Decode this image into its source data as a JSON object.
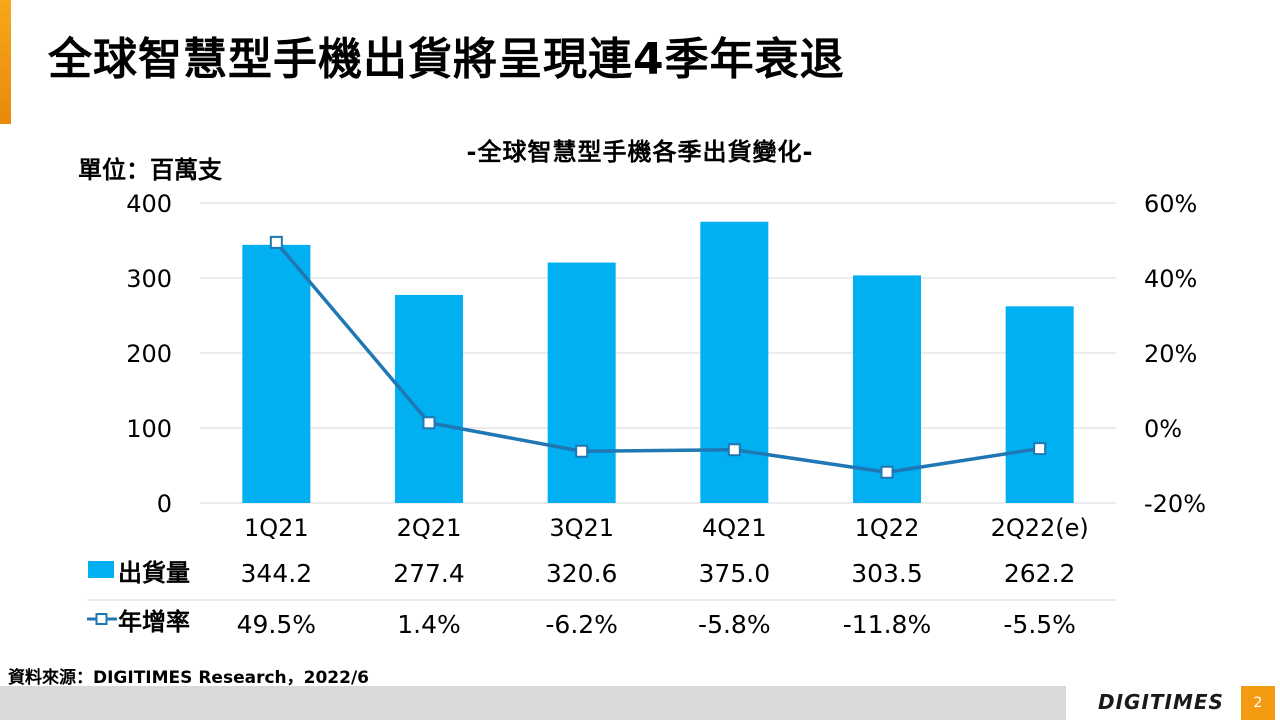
{
  "slide": {
    "title": "全球智慧型手機出貨將呈現連4季年衰退",
    "unit_label": "單位：百萬支",
    "source": "資料來源：DIGITIMES Research，2022/6",
    "logo": "DIGITIMES",
    "page_number": "2",
    "accent_color": "#f39c12"
  },
  "chart_data": {
    "type": "bar",
    "title": "-全球智慧型手機各季出貨變化-",
    "categories": [
      "1Q21",
      "2Q21",
      "3Q21",
      "4Q21",
      "1Q22",
      "2Q22(e)"
    ],
    "series": [
      {
        "name": "出貨量",
        "type": "bar",
        "axis": "left",
        "color": "#00b0f0",
        "values": [
          344.2,
          277.4,
          320.6,
          375.0,
          303.5,
          262.2
        ],
        "labels": [
          "344.2",
          "277.4",
          "320.6",
          "375.0",
          "303.5",
          "262.2"
        ]
      },
      {
        "name": "年增率",
        "type": "line",
        "axis": "right",
        "color": "#1f77b4",
        "values": [
          49.5,
          1.4,
          -6.2,
          -5.8,
          -11.8,
          -5.5
        ],
        "labels": [
          "49.5%",
          "1.4%",
          "-6.2%",
          "-5.8%",
          "-11.8%",
          "-5.5%"
        ]
      }
    ],
    "y_left": {
      "min": 0,
      "max": 400,
      "ticks": [
        "0",
        "100",
        "200",
        "300",
        "400"
      ]
    },
    "y_right": {
      "min": -20,
      "max": 60,
      "ticks": [
        "-20%",
        "0%",
        "20%",
        "40%",
        "60%"
      ]
    },
    "grid": true,
    "data_table": true
  }
}
